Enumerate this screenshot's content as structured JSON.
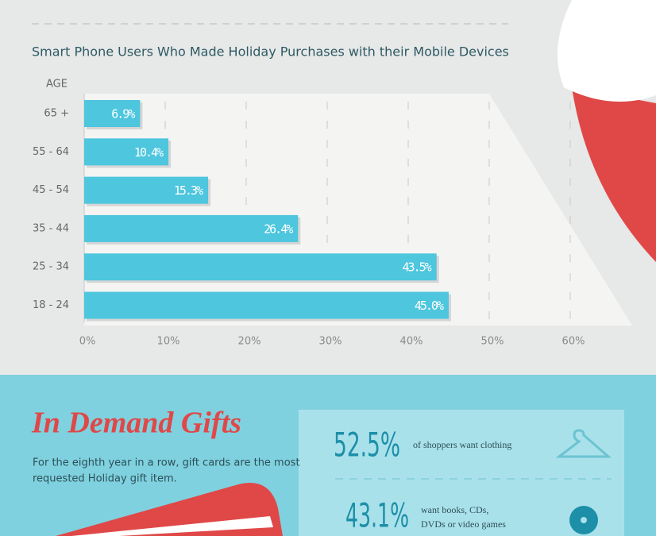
{
  "chart_data": {
    "type": "hbar",
    "title": "Smart Phone Users Who Made Holiday Purchases with their Mobile Devices",
    "y_label": "AGE",
    "categories": [
      "65 +",
      "55 - 64",
      "45 - 54",
      "35 - 44",
      "25 - 34",
      "18 - 24"
    ],
    "values": [
      6.9,
      10.4,
      15.3,
      26.4,
      43.5,
      45.0
    ],
    "value_labels": [
      "6.9%",
      "10.4%",
      "15.3%",
      "26.4%",
      "43.5%",
      "45.0%"
    ],
    "color": "#4dc6de",
    "xlim": [
      0,
      60
    ],
    "xticks": [
      {
        "value": 0,
        "label": "0%"
      },
      {
        "value": 10,
        "label": "10%"
      },
      {
        "value": 20,
        "label": "20%"
      },
      {
        "value": 30,
        "label": "30%"
      },
      {
        "value": 40,
        "label": "40%"
      },
      {
        "value": 50,
        "label": "50%"
      },
      {
        "value": 60,
        "label": "60%"
      }
    ],
    "grid": true
  },
  "gifts": {
    "title": "In Demand Gifts",
    "text_lines": [
      "For the eighth year in a row, gift cards are the most",
      "requested Holiday gift item."
    ],
    "stats": [
      {
        "value": "52.5%",
        "lines": [
          "of shoppers want clothing"
        ]
      },
      {
        "value": "43.1%",
        "lines": [
          "want books, CDs,",
          "DVDs or video games"
        ]
      }
    ]
  }
}
